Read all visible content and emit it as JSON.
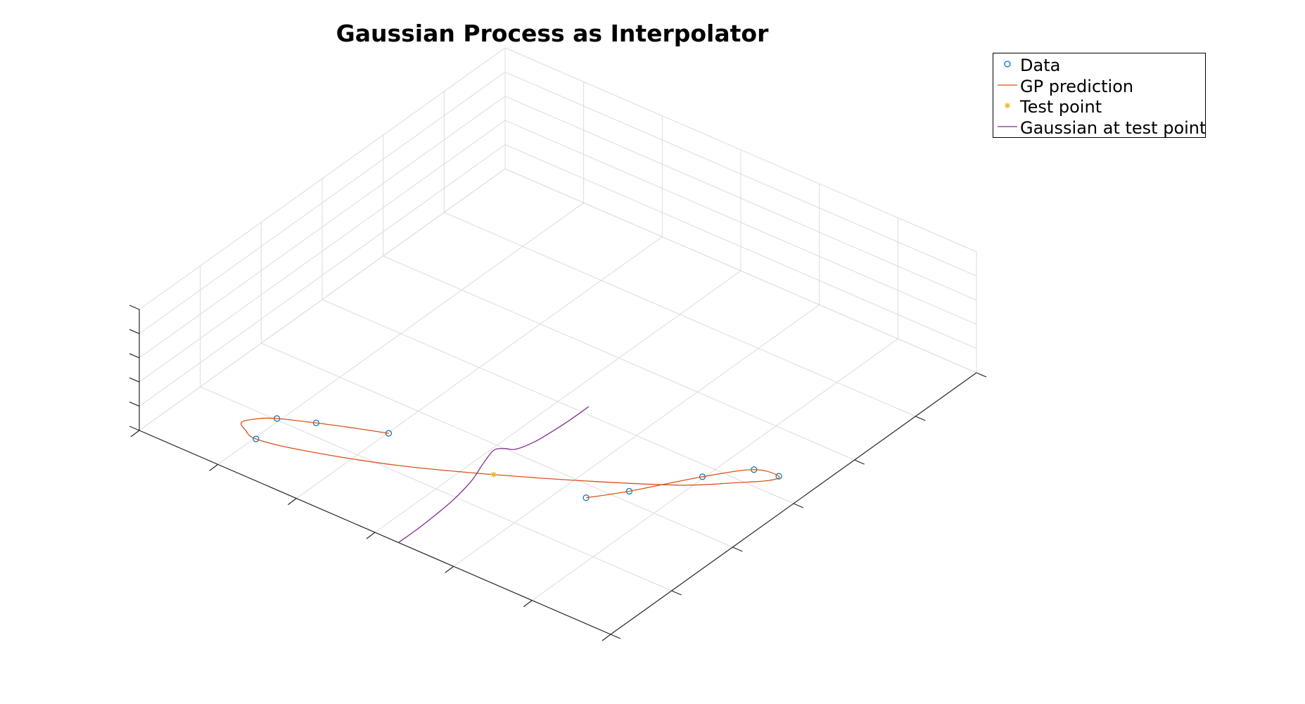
{
  "chart_data": {
    "type": "line",
    "title": "Gaussian Process as Interpolator",
    "xlabel": "",
    "ylabel": "",
    "zlabel": "",
    "grid": true,
    "view": "3d",
    "legend_position": "top-right",
    "xlim": [
      0,
      1
    ],
    "ylim": [
      0,
      1
    ],
    "zlim": [
      0,
      1
    ],
    "series": [
      {
        "name": "Data",
        "kind": "markers",
        "marker": "circle",
        "color": "#0072BD",
        "points": [
          [
            0.335,
            0.25,
            0
          ],
          [
            0.22,
            0.2,
            0
          ],
          [
            0.16,
            0.17,
            0
          ],
          [
            0.17,
            0.1,
            0
          ],
          [
            0.93,
            0.55,
            0
          ],
          [
            0.885,
            0.54,
            0
          ],
          [
            0.83,
            0.47,
            0
          ],
          [
            0.76,
            0.36,
            0
          ],
          [
            0.715,
            0.3,
            0
          ]
        ]
      },
      {
        "name": "GP prediction",
        "kind": "line",
        "color": "#D95319",
        "points": [
          [
            0.335,
            0.25,
            0
          ],
          [
            0.275,
            0.225,
            0
          ],
          [
            0.22,
            0.2,
            0
          ],
          [
            0.16,
            0.17,
            0
          ],
          [
            0.135,
            0.15,
            0
          ],
          [
            0.12,
            0.125,
            0
          ],
          [
            0.14,
            0.11,
            0
          ],
          [
            0.17,
            0.1,
            0
          ],
          [
            0.25,
            0.12,
            0
          ],
          [
            0.4,
            0.18,
            0
          ],
          [
            0.55,
            0.26,
            0
          ],
          [
            0.7,
            0.35,
            0
          ],
          [
            0.82,
            0.43,
            0
          ],
          [
            0.885,
            0.49,
            0
          ],
          [
            0.925,
            0.53,
            0
          ],
          [
            0.93,
            0.55,
            0
          ],
          [
            0.885,
            0.54,
            0
          ],
          [
            0.83,
            0.47,
            0
          ],
          [
            0.76,
            0.36,
            0
          ],
          [
            0.715,
            0.3,
            0
          ]
        ]
      },
      {
        "name": "Test point",
        "kind": "markers",
        "marker": "asterisk",
        "color": "#EDB120",
        "points": [
          [
            0.55,
            0.26,
            0
          ]
        ]
      },
      {
        "name": "Gaussian at test point",
        "kind": "line",
        "color": "#7E2F8E",
        "points": [
          [
            0.55,
            0.0,
            0.0
          ],
          [
            0.55,
            0.05,
            0.0
          ],
          [
            0.55,
            0.1,
            0.01
          ],
          [
            0.55,
            0.15,
            0.03
          ],
          [
            0.55,
            0.2,
            0.08
          ],
          [
            0.55,
            0.23,
            0.15
          ],
          [
            0.55,
            0.26,
            0.2
          ],
          [
            0.55,
            0.29,
            0.15
          ],
          [
            0.55,
            0.32,
            0.08
          ],
          [
            0.55,
            0.37,
            0.03
          ],
          [
            0.55,
            0.42,
            0.01
          ],
          [
            0.55,
            0.47,
            0.0
          ],
          [
            0.55,
            0.52,
            0.0
          ]
        ]
      }
    ]
  }
}
